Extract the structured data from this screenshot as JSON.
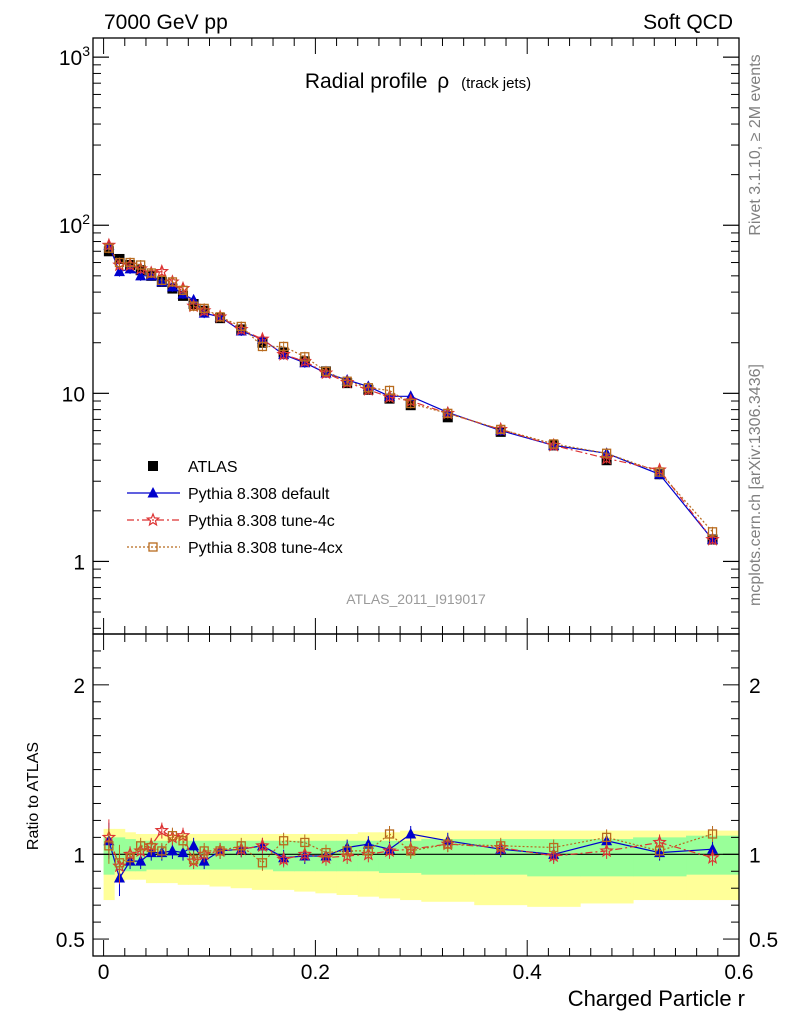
{
  "header": {
    "left": "7000 GeV pp",
    "right": "Soft QCD"
  },
  "sidebar": {
    "top": "Rivet 3.1.10, ≥ 2M events",
    "bottom": "mcplots.cern.ch [arXiv:1306.3436]"
  },
  "watermark": "ATLAS_2011_I919017",
  "chart_data": [
    {
      "type": "scatter",
      "title": "Radial profile",
      "title_symbol": "ρ",
      "title_suffix": "(track jets)",
      "xlabel": "",
      "ylabel": "",
      "yscale": "log",
      "xlim": [
        -0.01,
        0.6
      ],
      "ylim": [
        0.37,
        1300
      ],
      "y_ticks": [
        "1",
        "10",
        "10",
        "10"
      ],
      "y_tick_exponents": [
        "",
        "",
        "2",
        "3"
      ],
      "legend_position": "left-middle",
      "x": [
        0.005,
        0.015,
        0.025,
        0.035,
        0.045,
        0.055,
        0.065,
        0.075,
        0.085,
        0.095,
        0.11,
        0.13,
        0.15,
        0.17,
        0.19,
        0.21,
        0.23,
        0.25,
        0.27,
        0.29,
        0.325,
        0.375,
        0.425,
        0.475,
        0.525,
        0.575
      ],
      "series": [
        {
          "name": "ATLAS",
          "color": "#000000",
          "marker": "square",
          "values": [
            70,
            63,
            58,
            54,
            50,
            46,
            42,
            38,
            34,
            31,
            28,
            24,
            20,
            17.5,
            15.5,
            13.5,
            11.5,
            10.5,
            9.3,
            8.5,
            7.2,
            5.9,
            4.9,
            4.0,
            3.3,
            1.35
          ]
        },
        {
          "name": "Pythia 8.308 default",
          "color": "#0000cc",
          "marker": "triangle",
          "line": "solid",
          "values": [
            76,
            53,
            55,
            50,
            50,
            46,
            43,
            39,
            36,
            30,
            28.5,
            23.5,
            21,
            17,
            15.2,
            13.2,
            12,
            11,
            9.6,
            9.6,
            7.7,
            6.0,
            4.9,
            4.4,
            3.3,
            1.35
          ]
        },
        {
          "name": "Pythia 8.308 tune-4c",
          "color": "#dd3333",
          "marker": "star",
          "line": "dashdot",
          "values": [
            76,
            58,
            58,
            55,
            52,
            53,
            46,
            42,
            33,
            31,
            28.5,
            24,
            21,
            17,
            15.5,
            13.2,
            11.6,
            10.5,
            9.5,
            9.0,
            7.6,
            6.1,
            4.9,
            4.1,
            3.5,
            1.35
          ]
        },
        {
          "name": "Pythia 8.308 tune-4cx",
          "color": "#b86b1e",
          "marker": "open-square",
          "line": "dotted",
          "values": [
            73,
            60,
            60,
            58,
            52,
            47,
            46,
            41,
            33,
            32,
            28.5,
            25,
            19,
            19,
            16.5,
            13.5,
            11.8,
            10.8,
            10.4,
            8.7,
            7.6,
            6.1,
            5.0,
            4.4,
            3.4,
            1.5
          ]
        }
      ]
    },
    {
      "type": "scatter",
      "xlabel": "Charged Particle r",
      "ylabel": "Ratio to ATLAS",
      "xlim": [
        -0.01,
        0.6
      ],
      "ylim": [
        0.4,
        2.3
      ],
      "x_ticks": [
        "0",
        "0.2",
        "0.4",
        "0.6"
      ],
      "y_ticks": [
        "0.5",
        "1",
        "2"
      ],
      "x": [
        0.005,
        0.015,
        0.025,
        0.035,
        0.045,
        0.055,
        0.065,
        0.075,
        0.085,
        0.095,
        0.11,
        0.13,
        0.15,
        0.17,
        0.19,
        0.21,
        0.23,
        0.25,
        0.27,
        0.29,
        0.325,
        0.375,
        0.425,
        0.475,
        0.525,
        0.575
      ],
      "band_edges": [
        0.0,
        0.01,
        0.02,
        0.03,
        0.04,
        0.05,
        0.06,
        0.07,
        0.08,
        0.09,
        0.1,
        0.12,
        0.14,
        0.16,
        0.18,
        0.2,
        0.22,
        0.24,
        0.26,
        0.28,
        0.3,
        0.35,
        0.4,
        0.45,
        0.5,
        0.55,
        0.6
      ],
      "band_inner_low": [
        0.88,
        0.9,
        0.9,
        0.9,
        0.91,
        0.91,
        0.91,
        0.91,
        0.91,
        0.91,
        0.91,
        0.91,
        0.91,
        0.9,
        0.9,
        0.9,
        0.9,
        0.9,
        0.89,
        0.89,
        0.88,
        0.88,
        0.87,
        0.87,
        0.87,
        0.88
      ],
      "band_inner_high": [
        1.1,
        1.1,
        1.09,
        1.08,
        1.08,
        1.08,
        1.08,
        1.08,
        1.08,
        1.08,
        1.08,
        1.08,
        1.08,
        1.08,
        1.08,
        1.08,
        1.08,
        1.08,
        1.08,
        1.08,
        1.09,
        1.09,
        1.09,
        1.09,
        1.1,
        1.11
      ],
      "band_outer_low": [
        0.73,
        0.84,
        0.85,
        0.85,
        0.83,
        0.83,
        0.83,
        0.82,
        0.82,
        0.82,
        0.81,
        0.8,
        0.79,
        0.79,
        0.78,
        0.77,
        0.76,
        0.75,
        0.74,
        0.73,
        0.72,
        0.7,
        0.69,
        0.71,
        0.73,
        0.73
      ],
      "band_outer_high": [
        1.15,
        1.15,
        1.13,
        1.12,
        1.12,
        1.12,
        1.12,
        1.12,
        1.12,
        1.12,
        1.12,
        1.12,
        1.12,
        1.12,
        1.12,
        1.12,
        1.12,
        1.13,
        1.13,
        1.14,
        1.14,
        1.14,
        1.14,
        1.14,
        1.14,
        1.14
      ],
      "series": [
        {
          "name": "Pythia 8.308 default",
          "color": "#0000cc",
          "marker": "triangle",
          "line": "solid",
          "values": [
            1.08,
            0.86,
            0.96,
            0.96,
            1.01,
            1.01,
            1.02,
            1.01,
            1.05,
            0.96,
            1.02,
            1.03,
            1.05,
            0.98,
            0.99,
            0.99,
            1.04,
            1.06,
            1.03,
            1.12,
            1.08,
            1.03,
            1.0,
            1.08,
            1.01,
            1.03
          ]
        },
        {
          "name": "Pythia 8.308 tune-4c",
          "color": "#dd3333",
          "marker": "star",
          "line": "dashdot",
          "values": [
            1.1,
            0.93,
            1.0,
            1.02,
            1.05,
            1.14,
            1.1,
            1.11,
            0.96,
            1.0,
            1.02,
            1.03,
            1.05,
            0.97,
            1.0,
            0.98,
            0.99,
            1.0,
            1.02,
            1.03,
            1.06,
            1.04,
            0.99,
            1.02,
            1.07,
            0.98
          ]
        },
        {
          "name": "Pythia 8.308 tune-4cx",
          "color": "#b86b1e",
          "marker": "open-square",
          "line": "dotted",
          "values": [
            1.05,
            0.95,
            0.98,
            1.05,
            1.04,
            1.02,
            1.11,
            1.08,
            0.97,
            1.02,
            1.02,
            1.05,
            0.95,
            1.08,
            1.07,
            1.01,
            1.02,
            1.02,
            1.12,
            1.02,
            1.06,
            1.05,
            1.04,
            1.1,
            1.02,
            1.12
          ]
        }
      ]
    }
  ]
}
